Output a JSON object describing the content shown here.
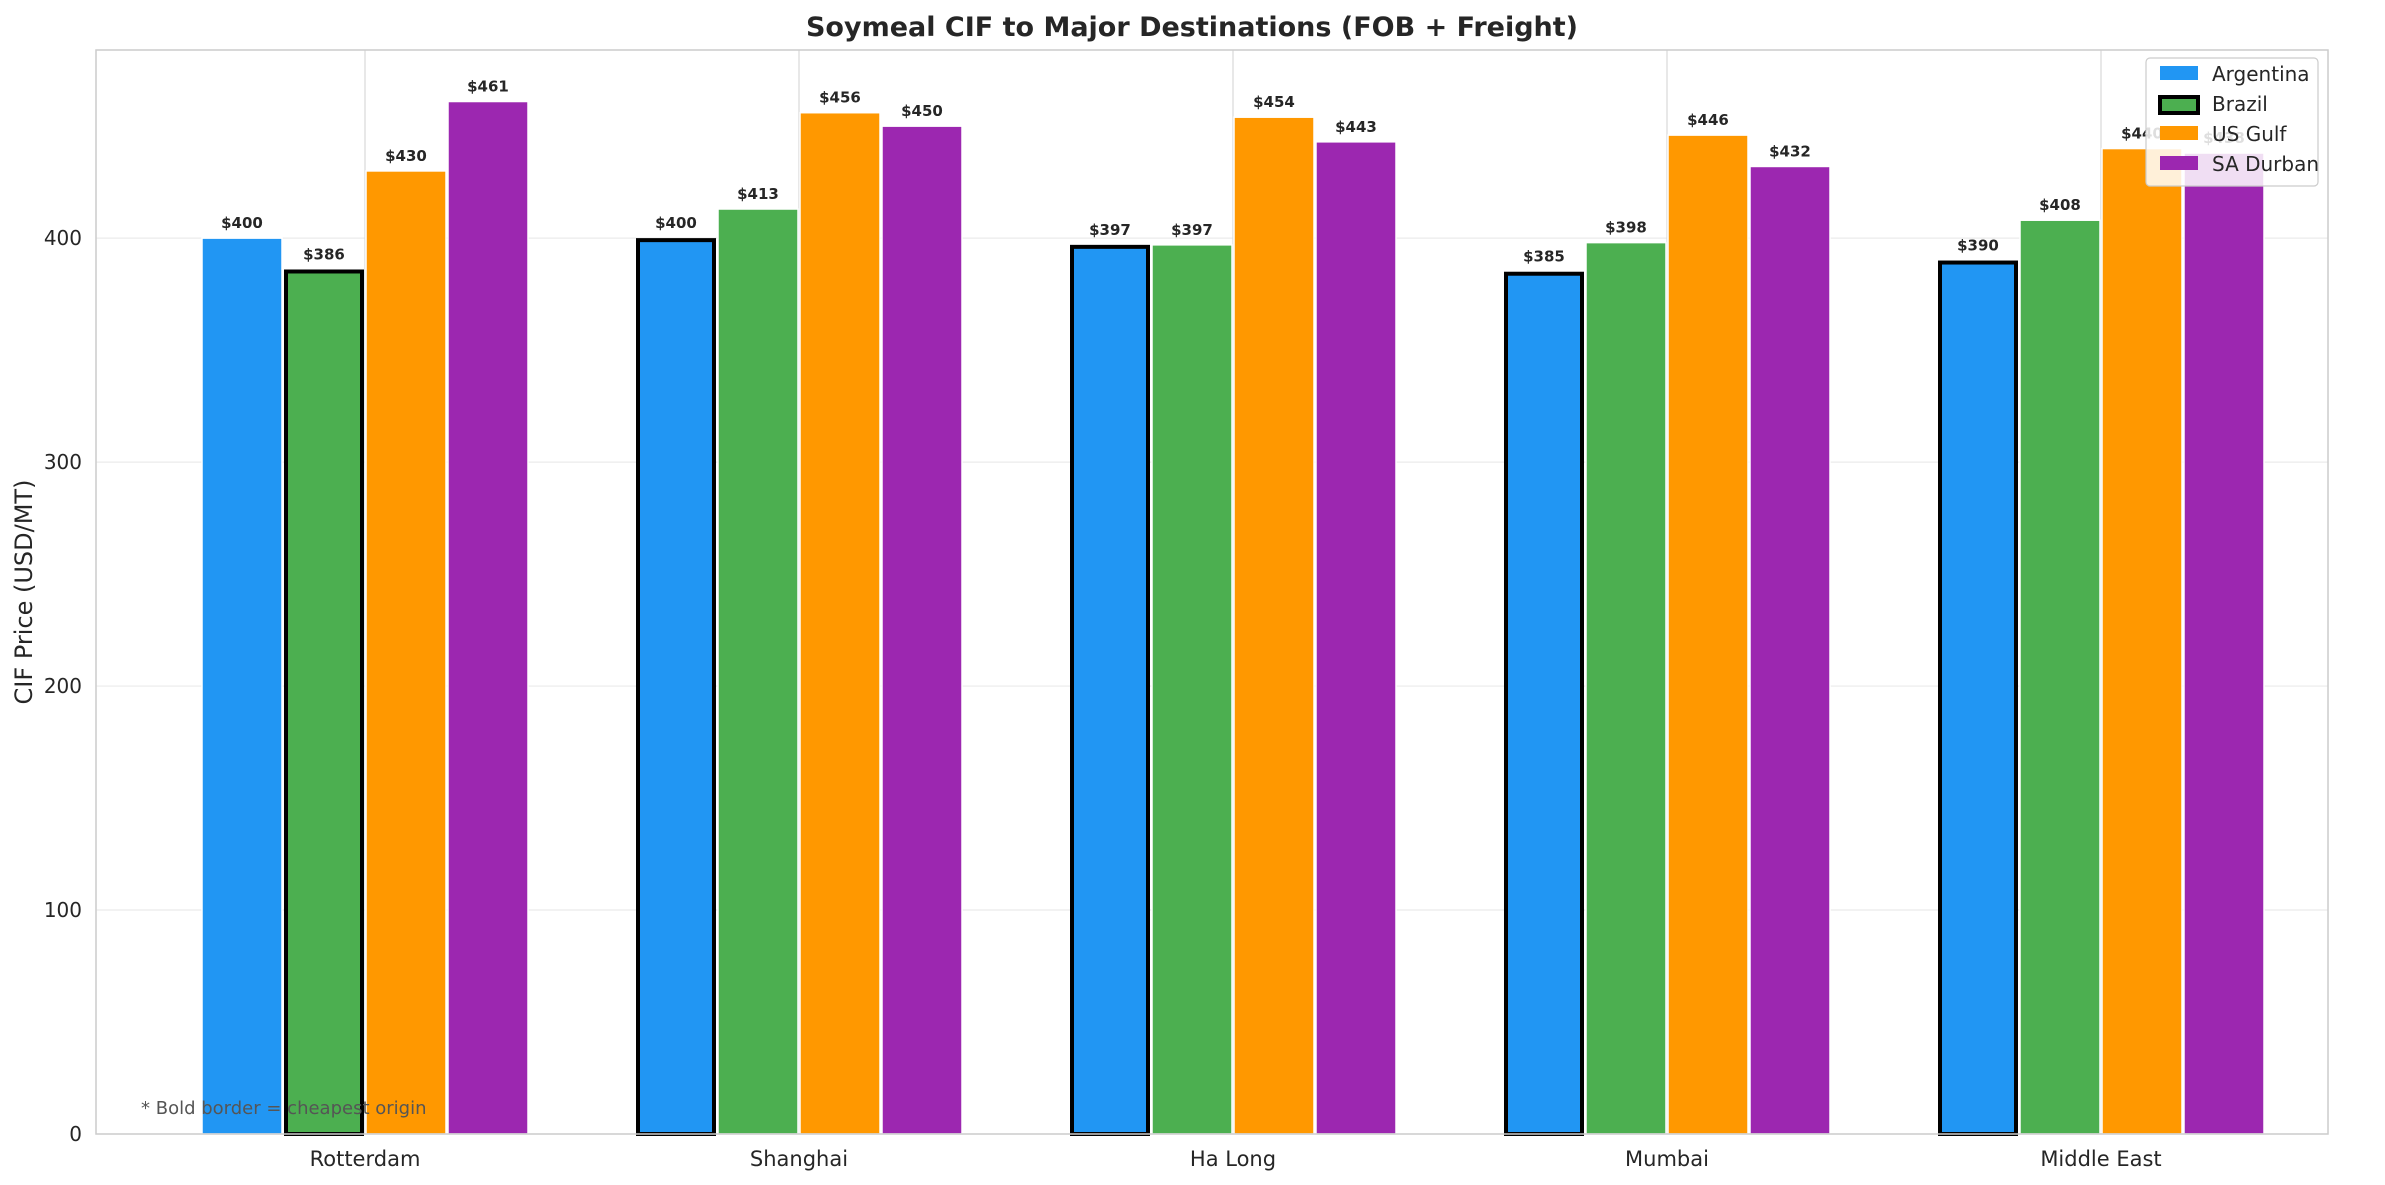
{
  "chart_data": {
    "type": "bar",
    "title": "Soymeal CIF to Major Destinations (FOB + Freight)",
    "ylabel": "CIF Price (USD/MT)",
    "xlabel": "",
    "categories": [
      "Rotterdam",
      "Shanghai",
      "Ha Long",
      "Mumbai",
      "Middle East"
    ],
    "series": [
      {
        "name": "Argentina",
        "color": "#2196F3",
        "values": [
          400,
          400,
          397,
          385,
          390
        ],
        "labels": [
          "$400",
          "$400",
          "$397",
          "$385",
          "$390"
        ]
      },
      {
        "name": "Brazil",
        "color": "#4CAF50",
        "values": [
          386,
          413,
          397,
          398,
          408
        ],
        "labels": [
          "$386",
          "$413",
          "$397",
          "$398",
          "$408"
        ]
      },
      {
        "name": "US Gulf",
        "color": "#FF9800",
        "values": [
          430,
          456,
          454,
          446,
          440
        ],
        "labels": [
          "$430",
          "$456",
          "$454",
          "$446",
          "$440"
        ]
      },
      {
        "name": "SA Durban",
        "color": "#9C27B0",
        "values": [
          461,
          450,
          443,
          432,
          438
        ],
        "labels": [
          "$461",
          "$450",
          "$443",
          "$432",
          "$438"
        ]
      }
    ],
    "cheapest_origin": [
      "Brazil",
      "Argentina",
      "Argentina",
      "Argentina",
      "Argentina"
    ],
    "ylim": [
      0,
      484
    ],
    "yticks": [
      0,
      100,
      200,
      300,
      400
    ],
    "grid": true,
    "legend_position": "top-right",
    "annotation": "* Bold border = cheapest origin"
  }
}
